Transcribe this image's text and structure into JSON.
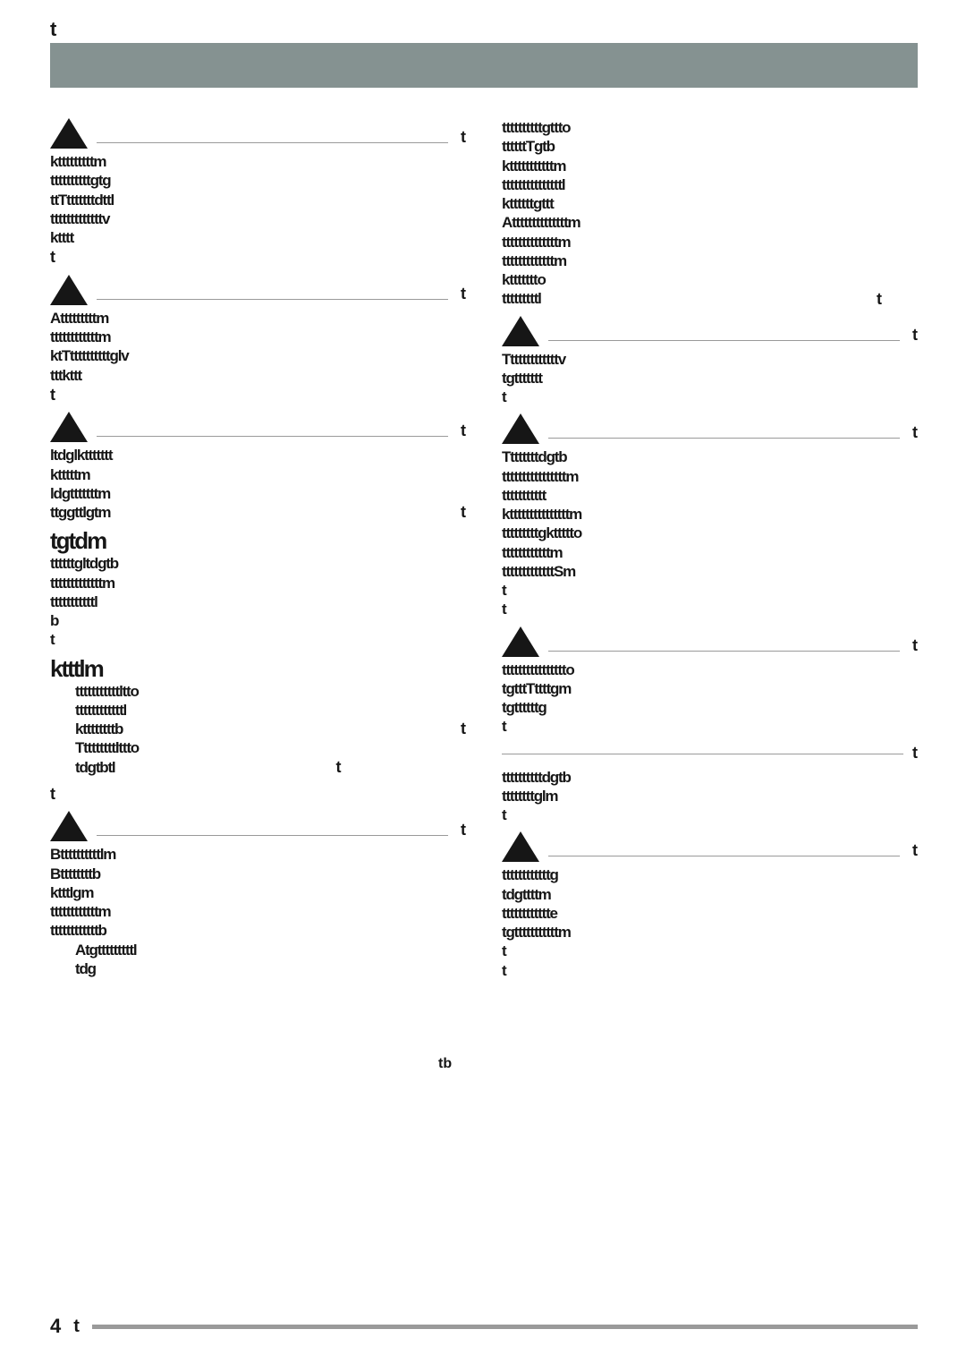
{
  "header": {
    "top_letter": "t"
  },
  "marker_t": "t",
  "footer": {
    "page": "4",
    "t": "t"
  },
  "triangle": {
    "fill": "#161616",
    "width": 42,
    "height": 34
  },
  "hr_color": "#9a9a9a",
  "left": {
    "sections": [
      {
        "type": "tri",
        "lines": [
          "ktttttttttm",
          "ttttttttttgtg",
          "ttTtttttttdttl",
          "tttttttttttttv",
          "ktttt"
        ],
        "trail_t": true
      },
      {
        "type": "tri",
        "lines": [
          "Atttttttttm",
          "ttttttttttttm",
          "ktTttttttttttglv",
          "tttkttt"
        ],
        "trail_t": true
      },
      {
        "type": "tri",
        "lines": [
          "ltdglkttttttt",
          "ktttttm",
          "ldgtttttttm",
          "ttggttlgtm"
        ],
        "trail_t_right": true
      },
      {
        "type": "plain",
        "head": "tgtdm",
        "lines": [
          "ttttttgltdgtb",
          "tttttttttttttm",
          "tttttttttttl",
          "b",
          "t"
        ]
      },
      {
        "type": "plain",
        "head": "ktttlm",
        "lines_indent": [
          "tttttttttttltto",
          "ttttttttttttl",
          "kttttttttb",
          "Tttttttttlttto",
          "tdgtbtl"
        ],
        "trail_t_mid": true
      },
      {
        "type": "t"
      },
      {
        "type": "tri",
        "lines": [
          "Bttttttttttlm",
          "Bttttttttb",
          "ktttlgm",
          "ttttttttttttm",
          "ttttttttttttb"
        ],
        "extra_indent": [
          "Atgtttttttttl",
          "tdg"
        ],
        "side_mark": "tb"
      }
    ]
  },
  "right": {
    "pre_lines": [
      "ttttttttttgttto",
      "ttttttTgtb",
      "ktttttttttttm",
      "tttttttttttttttl",
      "kttttttgttt",
      "Attttttttttttttm",
      "ttttttttttttttm",
      "tttttttttttttm",
      "kttttttto",
      "tttttttttl"
    ],
    "pre_trail_t": true,
    "sections": [
      {
        "type": "tri",
        "lines": [
          "Tttttttttttttv",
          "tgttttttt",
          "t"
        ]
      },
      {
        "type": "tri",
        "lines": [
          "Ttttttttdgtb",
          "ttttttttttttttttm",
          "ttttttttttt",
          "ktttttttttttttttm",
          "tttttttttgkttttto",
          "ttttttttttttm",
          "tttttttttttttSm",
          "t",
          "t"
        ]
      },
      {
        "type": "tri",
        "lines": [
          "tttttttttttttttto",
          "tgtttTttttgm",
          "tgttttttg",
          "t"
        ]
      },
      {
        "type": "line_only",
        "lines": [
          "ttttttttttdgtb",
          "ttttttttglm",
          "t"
        ]
      },
      {
        "type": "tri",
        "lines": [
          "ttttttttttttg",
          "tdgttttm",
          "tttttttttttte",
          "tgtttttttttttm",
          "t",
          "t"
        ]
      }
    ]
  }
}
